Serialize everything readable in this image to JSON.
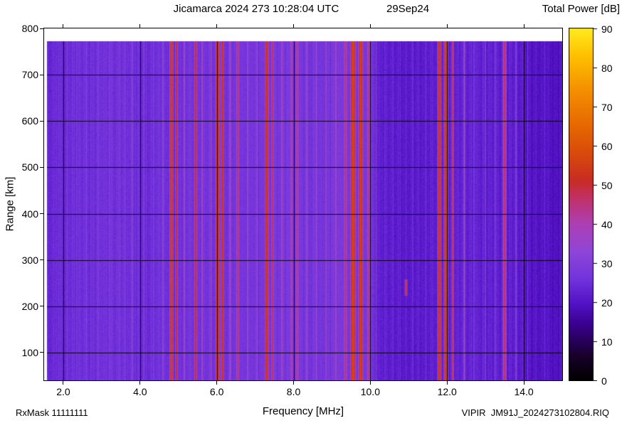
{
  "header": {
    "title": "Jicamarca 2024 273 10:28:04 UTC",
    "date": "29Sep24"
  },
  "footer": {
    "rxmask": "RxMask 11111111",
    "filename": "VIPIR  JM91J_2024273102804.RIQ"
  },
  "chart_data": {
    "type": "heatmap",
    "title": "Jicamarca 2024 273 10:28:04 UTC",
    "date_label": "29Sep24",
    "xlabel": "Frequency [MHz]",
    "ylabel": "Range [km]",
    "xlim": [
      1.5,
      15.0
    ],
    "ylim": [
      40,
      800
    ],
    "grid": true,
    "x_ticks": [
      2,
      4,
      6,
      8,
      10,
      12,
      14
    ],
    "x_tick_labels": [
      "2.0",
      "4.0",
      "6.0",
      "8.0",
      "10.0",
      "12.0",
      "14.0"
    ],
    "y_ticks": [
      100,
      200,
      300,
      400,
      500,
      600,
      700,
      800
    ],
    "y_tick_labels": [
      "100",
      "200",
      "300",
      "400",
      "500",
      "600",
      "700",
      "800"
    ],
    "colorbar": {
      "title": "Total Power [dB]",
      "min": 0,
      "max": 90,
      "ticks": [
        0,
        10,
        20,
        30,
        40,
        50,
        60,
        70,
        80,
        90
      ],
      "tick_labels": [
        "0",
        "10",
        "20",
        "30",
        "40",
        "50",
        "60",
        "70",
        "80",
        "90"
      ],
      "position": "right"
    },
    "palette": [
      [
        0,
        "#000000"
      ],
      [
        6,
        "#180028"
      ],
      [
        14,
        "#38008c"
      ],
      [
        20,
        "#5514c8"
      ],
      [
        26,
        "#7334dc"
      ],
      [
        33,
        "#8f46d8"
      ],
      [
        40,
        "#ad40b4"
      ],
      [
        46,
        "#c03270"
      ],
      [
        51,
        "#c92c24"
      ],
      [
        58,
        "#d84b0c"
      ],
      [
        66,
        "#e86c00"
      ],
      [
        75,
        "#f69400"
      ],
      [
        83,
        "#ffc000"
      ],
      [
        90,
        "#ffec20"
      ]
    ],
    "data_extent": {
      "freq_min": 1.57,
      "freq_max": 15.0,
      "range_min": 40,
      "range_max": 772
    },
    "background_profile": [
      [
        1.5,
        24
      ],
      [
        2.2,
        25
      ],
      [
        3.0,
        26
      ],
      [
        3.6,
        26
      ],
      [
        4.2,
        25
      ],
      [
        4.8,
        26
      ],
      [
        5.6,
        27
      ],
      [
        6.4,
        27
      ],
      [
        7.2,
        27
      ],
      [
        7.8,
        28
      ],
      [
        8.6,
        27
      ],
      [
        9.2,
        28
      ],
      [
        9.9,
        27
      ],
      [
        10.25,
        22
      ],
      [
        11.0,
        21.5
      ],
      [
        11.6,
        22
      ],
      [
        12.3,
        23
      ],
      [
        13.0,
        23
      ],
      [
        13.8,
        22
      ],
      [
        14.3,
        20
      ],
      [
        15.0,
        19.5
      ]
    ],
    "rfi_bands": {
      "columns": [
        "freq_mhz",
        "sigma_mhz",
        "peak_db"
      ],
      "rows": [
        [
          2.1,
          0.02,
          29
        ],
        [
          2.35,
          0.02,
          30
        ],
        [
          2.6,
          0.025,
          31
        ],
        [
          2.9,
          0.02,
          30
        ],
        [
          3.2,
          0.03,
          31
        ],
        [
          3.45,
          0.02,
          30
        ],
        [
          3.8,
          0.03,
          32
        ],
        [
          4.1,
          0.025,
          31
        ],
        [
          4.35,
          0.02,
          31
        ],
        [
          4.6,
          0.03,
          34
        ],
        [
          4.82,
          0.045,
          57
        ],
        [
          4.95,
          0.03,
          52
        ],
        [
          5.15,
          0.03,
          37
        ],
        [
          5.45,
          0.04,
          51
        ],
        [
          5.62,
          0.03,
          38
        ],
        [
          5.85,
          0.025,
          36
        ],
        [
          6.02,
          0.05,
          58
        ],
        [
          6.15,
          0.04,
          54
        ],
        [
          6.35,
          0.03,
          40
        ],
        [
          6.55,
          0.04,
          47
        ],
        [
          6.8,
          0.03,
          36
        ],
        [
          7.05,
          0.025,
          36
        ],
        [
          7.3,
          0.05,
          55
        ],
        [
          7.45,
          0.035,
          48
        ],
        [
          7.7,
          0.03,
          38
        ],
        [
          7.95,
          0.035,
          42
        ],
        [
          8.1,
          0.04,
          44
        ],
        [
          8.35,
          0.03,
          37
        ],
        [
          8.6,
          0.025,
          35
        ],
        [
          8.85,
          0.025,
          36
        ],
        [
          9.1,
          0.03,
          39
        ],
        [
          9.35,
          0.04,
          46
        ],
        [
          9.55,
          0.07,
          58
        ],
        [
          9.75,
          0.06,
          57
        ],
        [
          9.95,
          0.04,
          45
        ],
        [
          10.15,
          0.02,
          32
        ],
        [
          10.6,
          0.015,
          26
        ],
        [
          11.1,
          0.015,
          26
        ],
        [
          11.45,
          0.015,
          27
        ],
        [
          11.8,
          0.045,
          56
        ],
        [
          11.97,
          0.05,
          58
        ],
        [
          12.15,
          0.03,
          49
        ],
        [
          12.45,
          0.03,
          36
        ],
        [
          12.7,
          0.02,
          30
        ],
        [
          13.0,
          0.02,
          31
        ],
        [
          13.25,
          0.02,
          33
        ],
        [
          13.5,
          0.05,
          47
        ],
        [
          13.8,
          0.025,
          33
        ],
        [
          14.1,
          0.02,
          28
        ],
        [
          14.55,
          0.02,
          26
        ]
      ]
    },
    "echoes": [
      {
        "freq_mhz": 10.93,
        "sigma_mhz": 0.03,
        "range_km": [
          222,
          258
        ],
        "peak_db": 53
      }
    ]
  }
}
